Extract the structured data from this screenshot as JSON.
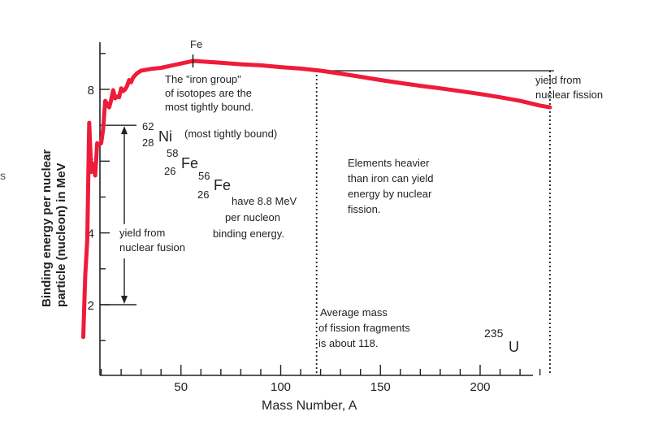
{
  "edge_text": "s",
  "chart_data": {
    "type": "line",
    "title": "",
    "xlabel": "Mass Number, A",
    "ylabel": [
      "Binding energy per nuclear",
      "particle (nucleon) in MeV"
    ],
    "xlim": [
      0,
      238
    ],
    "ylim": [
      0,
      9.3
    ],
    "x_ticks": [
      50,
      100,
      150,
      200
    ],
    "y_ticks": [
      2,
      4,
      6,
      8
    ],
    "grid": false,
    "series": [
      {
        "name": "",
        "color": "#ee1c3a",
        "points": [
          [
            1,
            1.1
          ],
          [
            2,
            2.8
          ],
          [
            3,
            3.8
          ],
          [
            4,
            7.07
          ],
          [
            5,
            5.7
          ],
          [
            6,
            5.9
          ],
          [
            7,
            5.6
          ],
          [
            8,
            6.5
          ],
          [
            9,
            6.46
          ],
          [
            10,
            6.5
          ],
          [
            11,
            6.9
          ],
          [
            12,
            7.68
          ],
          [
            14,
            7.5
          ],
          [
            15,
            7.7
          ],
          [
            16,
            7.98
          ],
          [
            17,
            7.75
          ],
          [
            18,
            7.8
          ],
          [
            19,
            7.78
          ],
          [
            20,
            8.03
          ],
          [
            21,
            7.95
          ],
          [
            22,
            8.0
          ],
          [
            23,
            8.1
          ],
          [
            24,
            8.26
          ],
          [
            25,
            8.2
          ],
          [
            26,
            8.33
          ],
          [
            28,
            8.45
          ],
          [
            30,
            8.52
          ],
          [
            35,
            8.57
          ],
          [
            40,
            8.6
          ],
          [
            45,
            8.66
          ],
          [
            50,
            8.72
          ],
          [
            56,
            8.79
          ],
          [
            58,
            8.79
          ],
          [
            60,
            8.78
          ],
          [
            70,
            8.74
          ],
          [
            80,
            8.7
          ],
          [
            90,
            8.67
          ],
          [
            100,
            8.62
          ],
          [
            110,
            8.58
          ],
          [
            120,
            8.52
          ],
          [
            130,
            8.44
          ],
          [
            140,
            8.35
          ],
          [
            150,
            8.26
          ],
          [
            160,
            8.18
          ],
          [
            170,
            8.1
          ],
          [
            180,
            8.03
          ],
          [
            190,
            7.95
          ],
          [
            200,
            7.87
          ],
          [
            210,
            7.78
          ],
          [
            220,
            7.68
          ],
          [
            230,
            7.55
          ],
          [
            235,
            7.5
          ]
        ]
      }
    ],
    "fusion_range": [
      1.1,
      7.0
    ],
    "fission_release_level": 8.52,
    "iron_peak": {
      "x": 56,
      "y": 8.79,
      "label": "Fe"
    },
    "annotations": {
      "iron_group": [
        "The \"iron group\"",
        "of isotopes are the",
        "most tightly bound."
      ],
      "nickel": {
        "mass": "62",
        "atomic": "28",
        "symbol": "Ni",
        "note": "(most tightly bound)"
      },
      "fe58": {
        "mass": "58",
        "atomic": "26",
        "symbol": "Fe"
      },
      "fe56": {
        "mass": "56",
        "atomic": "26",
        "symbol": "Fe"
      },
      "fe56_note": [
        "have 8.8 MeV",
        "per nucleon",
        "binding energy."
      ],
      "fusion": [
        "yield from",
        "nuclear fusion"
      ],
      "fission_yield": [
        "yield from",
        "nuclear fission"
      ],
      "heavier": [
        "Elements heavier",
        "than iron can yield",
        "energy by nuclear",
        "fission."
      ],
      "fragments": [
        "Average mass",
        "of fission fragments",
        "is about 118."
      ],
      "uranium": {
        "mass": "235",
        "symbol": "U"
      }
    }
  }
}
